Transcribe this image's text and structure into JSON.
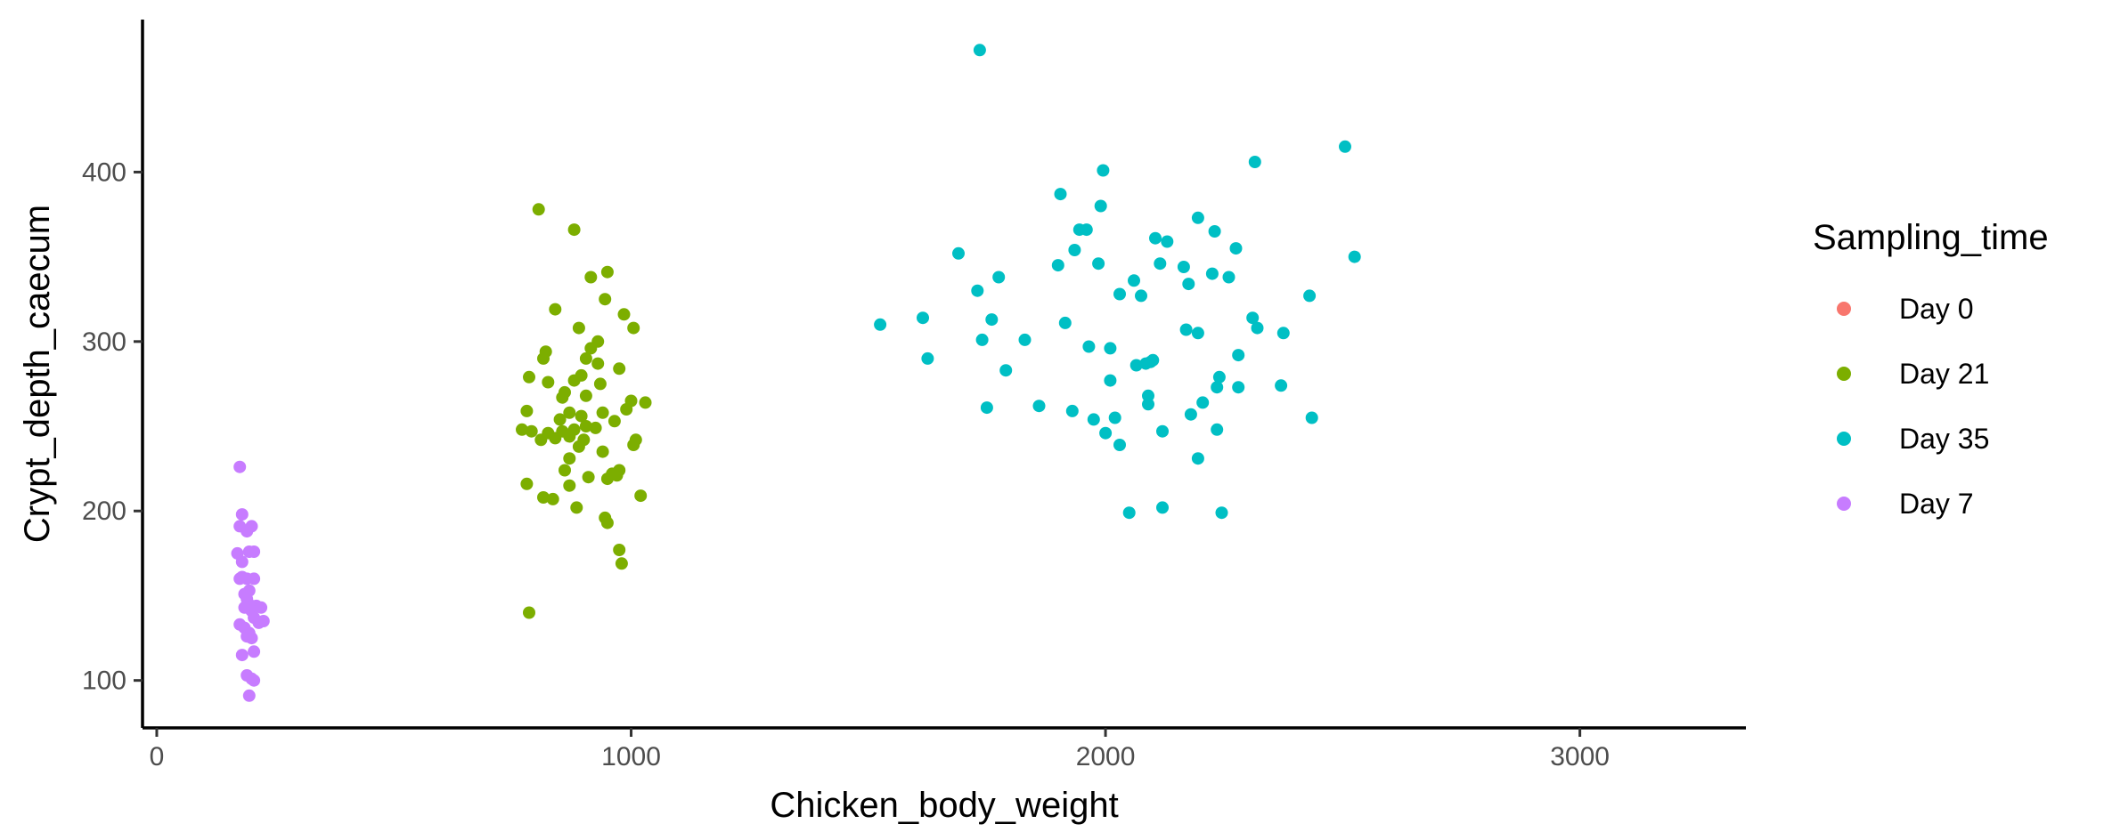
{
  "chart_data": {
    "type": "scatter",
    "title": "",
    "xlabel": "Chicken_body_weight",
    "ylabel": "Crypt_depth_caecum",
    "xlim": [
      -30,
      3350
    ],
    "ylim": [
      72,
      490
    ],
    "x_ticks": [
      0,
      1000,
      2000,
      3000
    ],
    "y_ticks": [
      100,
      200,
      300,
      400
    ],
    "grid": false,
    "legend": {
      "title": "Sampling_time",
      "position": "right"
    },
    "series": [
      {
        "name": "Day 0",
        "color": "#F8766D",
        "points": []
      },
      {
        "name": "Day 21",
        "color": "#7CAE00",
        "points": [
          [
            805,
            378
          ],
          [
            880,
            366
          ],
          [
            950,
            341
          ],
          [
            915,
            338
          ],
          [
            945,
            325
          ],
          [
            840,
            319
          ],
          [
            985,
            316
          ],
          [
            1005,
            308
          ],
          [
            890,
            308
          ],
          [
            930,
            300
          ],
          [
            820,
            294
          ],
          [
            915,
            296
          ],
          [
            815,
            290
          ],
          [
            905,
            290
          ],
          [
            930,
            287
          ],
          [
            975,
            284
          ],
          [
            785,
            279
          ],
          [
            895,
            280
          ],
          [
            880,
            277
          ],
          [
            825,
            276
          ],
          [
            935,
            275
          ],
          [
            860,
            270
          ],
          [
            855,
            267
          ],
          [
            905,
            268
          ],
          [
            1030,
            264
          ],
          [
            1000,
            265
          ],
          [
            780,
            259
          ],
          [
            990,
            260
          ],
          [
            940,
            258
          ],
          [
            870,
            258
          ],
          [
            850,
            254
          ],
          [
            895,
            256
          ],
          [
            965,
            253
          ],
          [
            770,
            248
          ],
          [
            790,
            247
          ],
          [
            825,
            246
          ],
          [
            855,
            247
          ],
          [
            880,
            248
          ],
          [
            905,
            250
          ],
          [
            925,
            249
          ],
          [
            870,
            244
          ],
          [
            810,
            242
          ],
          [
            840,
            243
          ],
          [
            900,
            242
          ],
          [
            1010,
            242
          ],
          [
            1005,
            239
          ],
          [
            890,
            238
          ],
          [
            940,
            235
          ],
          [
            870,
            231
          ],
          [
            860,
            224
          ],
          [
            975,
            224
          ],
          [
            960,
            222
          ],
          [
            970,
            221
          ],
          [
            950,
            219
          ],
          [
            910,
            220
          ],
          [
            780,
            216
          ],
          [
            870,
            215
          ],
          [
            1020,
            209
          ],
          [
            815,
            208
          ],
          [
            835,
            207
          ],
          [
            885,
            202
          ],
          [
            945,
            196
          ],
          [
            950,
            193
          ],
          [
            975,
            177
          ],
          [
            980,
            169
          ],
          [
            785,
            140
          ]
        ]
      },
      {
        "name": "Day 35",
        "color": "#00BFC4",
        "points": [
          [
            1735,
            472
          ],
          [
            2505,
            415
          ],
          [
            2315,
            406
          ],
          [
            1995,
            401
          ],
          [
            1905,
            387
          ],
          [
            1990,
            380
          ],
          [
            2195,
            373
          ],
          [
            1945,
            366
          ],
          [
            1960,
            366
          ],
          [
            2230,
            365
          ],
          [
            2105,
            361
          ],
          [
            2130,
            359
          ],
          [
            2275,
            355
          ],
          [
            1935,
            354
          ],
          [
            1690,
            352
          ],
          [
            2525,
            350
          ],
          [
            2115,
            346
          ],
          [
            1900,
            345
          ],
          [
            1985,
            346
          ],
          [
            2165,
            344
          ],
          [
            2225,
            340
          ],
          [
            2260,
            338
          ],
          [
            1775,
            338
          ],
          [
            2060,
            336
          ],
          [
            2175,
            334
          ],
          [
            1730,
            330
          ],
          [
            2030,
            328
          ],
          [
            2075,
            327
          ],
          [
            2430,
            327
          ],
          [
            2310,
            314
          ],
          [
            1615,
            314
          ],
          [
            1760,
            313
          ],
          [
            1915,
            311
          ],
          [
            1525,
            310
          ],
          [
            2320,
            308
          ],
          [
            2170,
            307
          ],
          [
            2195,
            305
          ],
          [
            2375,
            305
          ],
          [
            1740,
            301
          ],
          [
            1830,
            301
          ],
          [
            1965,
            297
          ],
          [
            2010,
            296
          ],
          [
            2280,
            292
          ],
          [
            1625,
            290
          ],
          [
            2100,
            289
          ],
          [
            2065,
            286
          ],
          [
            2085,
            287
          ],
          [
            2095,
            288
          ],
          [
            1790,
            283
          ],
          [
            2240,
            279
          ],
          [
            2010,
            277
          ],
          [
            2235,
            273
          ],
          [
            2280,
            273
          ],
          [
            2370,
            274
          ],
          [
            2090,
            268
          ],
          [
            1860,
            262
          ],
          [
            1750,
            261
          ],
          [
            2205,
            264
          ],
          [
            1930,
            259
          ],
          [
            2090,
            263
          ],
          [
            2180,
            257
          ],
          [
            1975,
            254
          ],
          [
            2020,
            255
          ],
          [
            2435,
            255
          ],
          [
            2120,
            247
          ],
          [
            2235,
            248
          ],
          [
            2000,
            246
          ],
          [
            2030,
            239
          ],
          [
            2195,
            231
          ],
          [
            2120,
            202
          ],
          [
            2050,
            199
          ],
          [
            2245,
            199
          ]
        ]
      },
      {
        "name": "Day 7",
        "color": "#C77CFF",
        "points": [
          [
            175,
            226
          ],
          [
            180,
            198
          ],
          [
            200,
            191
          ],
          [
            175,
            191
          ],
          [
            190,
            188
          ],
          [
            195,
            176
          ],
          [
            205,
            176
          ],
          [
            170,
            175
          ],
          [
            180,
            170
          ],
          [
            180,
            161
          ],
          [
            205,
            160
          ],
          [
            190,
            160
          ],
          [
            175,
            160
          ],
          [
            195,
            153
          ],
          [
            185,
            151
          ],
          [
            190,
            148
          ],
          [
            200,
            144
          ],
          [
            185,
            143
          ],
          [
            210,
            144
          ],
          [
            220,
            143
          ],
          [
            200,
            141
          ],
          [
            205,
            137
          ],
          [
            225,
            135
          ],
          [
            215,
            134
          ],
          [
            175,
            133
          ],
          [
            185,
            131
          ],
          [
            195,
            128
          ],
          [
            190,
            126
          ],
          [
            200,
            125
          ],
          [
            205,
            117
          ],
          [
            180,
            115
          ],
          [
            190,
            103
          ],
          [
            200,
            101
          ],
          [
            205,
            100
          ],
          [
            195,
            91
          ]
        ]
      }
    ]
  }
}
